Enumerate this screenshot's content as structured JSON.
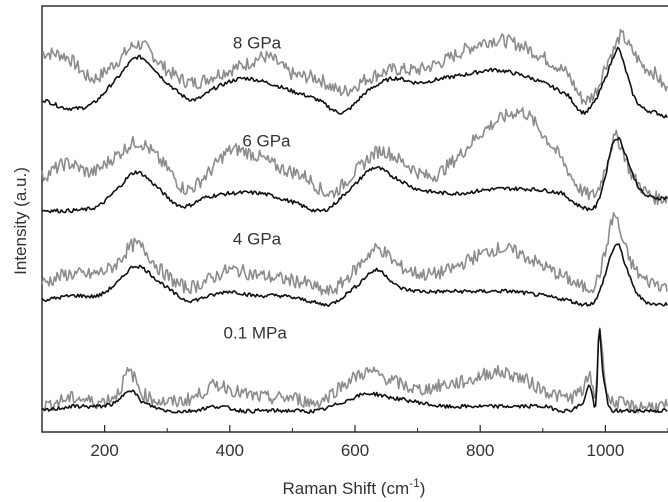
{
  "chart_data": {
    "type": "line",
    "title": "",
    "xlabel": "Raman Shift (cm",
    "xlabel_sup": "-1",
    "xlabel_end": ")",
    "ylabel": "Intensity (a.u.)",
    "xlim": [
      100,
      1100
    ],
    "ylim": [
      0,
      100
    ],
    "xticks": [
      "200",
      "400",
      "600",
      "800",
      "1000"
    ],
    "xtick_values": [
      200,
      400,
      600,
      800,
      1000
    ],
    "grid": false,
    "legend": "none",
    "colors": {
      "gray": "#8c8c8c",
      "black": "#111111"
    },
    "groups": [
      {
        "label": "8 GPa",
        "label_x": 405,
        "label_y": 90,
        "gray": {
          "x": [
            100,
            140,
            180,
            220,
            255,
            300,
            340,
            380,
            420,
            460,
            500,
            540,
            580,
            620,
            660,
            700,
            740,
            780,
            820,
            860,
            900,
            940,
            965,
            985,
            1000,
            1015,
            1025,
            1040,
            1060,
            1080,
            1100
          ],
          "y": [
            89,
            88,
            83,
            87,
            91,
            85,
            82,
            84,
            86,
            88,
            84,
            83,
            80,
            83,
            85,
            85,
            87,
            90,
            92,
            91,
            88,
            84,
            78,
            80,
            86,
            90,
            93,
            90,
            86,
            84,
            80
          ]
        },
        "black": {
          "x": [
            100,
            140,
            180,
            220,
            255,
            300,
            340,
            380,
            420,
            460,
            500,
            540,
            580,
            620,
            660,
            700,
            740,
            780,
            820,
            860,
            900,
            940,
            965,
            985,
            1000,
            1010,
            1020,
            1030,
            1045,
            1060,
            1080,
            1100
          ],
          "y": [
            78,
            76,
            77,
            83,
            88,
            82,
            78,
            81,
            83,
            82,
            80,
            78,
            75,
            80,
            83,
            82,
            83,
            84,
            85,
            84,
            82,
            79,
            75,
            78,
            83,
            87,
            90,
            86,
            79,
            76,
            75,
            74
          ]
        }
      },
      {
        "label": "6 GPa",
        "label_x": 420,
        "label_y": 67,
        "gray": {
          "x": [
            100,
            140,
            180,
            220,
            255,
            300,
            330,
            360,
            400,
            440,
            480,
            520,
            560,
            600,
            640,
            680,
            720,
            760,
            800,
            840,
            870,
            900,
            930,
            960,
            985,
            1000,
            1015,
            1025,
            1040,
            1060,
            1080,
            1100
          ],
          "y": [
            60,
            63,
            61,
            65,
            68,
            62,
            57,
            60,
            66,
            65,
            62,
            60,
            56,
            61,
            66,
            63,
            60,
            64,
            70,
            74,
            75,
            70,
            64,
            57,
            56,
            62,
            69,
            67,
            61,
            57,
            55,
            55
          ]
        },
        "black": {
          "x": [
            100,
            150,
            190,
            220,
            250,
            280,
            310,
            330,
            360,
            400,
            450,
            500,
            550,
            600,
            630,
            660,
            700,
            760,
            820,
            880,
            930,
            960,
            985,
            1000,
            1010,
            1020,
            1030,
            1045,
            1060,
            1080,
            1100
          ],
          "y": [
            52,
            52,
            53,
            57,
            61,
            58,
            54,
            53,
            55,
            56,
            56,
            54,
            52,
            58,
            62,
            60,
            57,
            56,
            57,
            57,
            56,
            53,
            53,
            60,
            67,
            69,
            66,
            60,
            56,
            55,
            55
          ]
        }
      },
      {
        "label": "4 GPa",
        "label_x": 405,
        "label_y": 44,
        "gray": {
          "x": [
            100,
            140,
            180,
            215,
            250,
            290,
            330,
            370,
            400,
            440,
            480,
            520,
            560,
            600,
            635,
            670,
            710,
            750,
            790,
            830,
            860,
            900,
            940,
            965,
            985,
            1000,
            1008,
            1015,
            1025,
            1040,
            1060,
            1080,
            1100
          ],
          "y": [
            35,
            37,
            37,
            39,
            44,
            38,
            34,
            36,
            38,
            37,
            36,
            35,
            33,
            38,
            43,
            39,
            37,
            38,
            41,
            43,
            42,
            39,
            36,
            34,
            35,
            42,
            48,
            51,
            46,
            40,
            36,
            35,
            34
          ]
        },
        "black": {
          "x": [
            100,
            150,
            190,
            220,
            250,
            290,
            330,
            370,
            400,
            440,
            480,
            520,
            560,
            600,
            635,
            670,
            710,
            750,
            800,
            850,
            900,
            940,
            965,
            985,
            1000,
            1010,
            1020,
            1030,
            1045,
            1060,
            1080,
            1100
          ],
          "y": [
            31,
            32,
            32,
            35,
            39,
            35,
            31,
            32,
            33,
            32,
            32,
            31,
            30,
            34,
            38,
            34,
            33,
            33,
            33,
            33,
            32,
            31,
            30,
            31,
            37,
            42,
            44,
            40,
            34,
            31,
            30,
            30
          ]
        }
      },
      {
        "label": "0.1 MPa",
        "label_x": 390,
        "label_y": 22,
        "gray": {
          "x": [
            100,
            150,
            190,
            220,
            240,
            260,
            300,
            340,
            380,
            420,
            460,
            500,
            540,
            580,
            620,
            660,
            700,
            740,
            780,
            820,
            860,
            900,
            940,
            965,
            975,
            985,
            990,
            995,
            1005,
            1020,
            1040,
            1060,
            1080,
            1100
          ],
          "y": [
            6,
            8,
            7,
            9,
            14,
            9,
            7,
            8,
            11,
            9,
            8,
            8,
            7,
            11,
            14,
            12,
            10,
            11,
            12,
            14,
            13,
            10,
            8,
            10,
            13,
            9,
            25,
            18,
            8,
            7,
            6,
            6,
            6,
            6
          ]
        },
        "black": {
          "x": [
            100,
            150,
            190,
            220,
            240,
            260,
            300,
            340,
            380,
            420,
            460,
            500,
            540,
            580,
            620,
            660,
            700,
            740,
            780,
            820,
            860,
            900,
            940,
            965,
            975,
            985,
            990,
            995,
            1005,
            1020,
            1040,
            1060,
            1080,
            1100
          ],
          "y": [
            5,
            6,
            6,
            7,
            10,
            7,
            5,
            5,
            6,
            5,
            5,
            5,
            5,
            7,
            9,
            8,
            7,
            6,
            6,
            6,
            6,
            6,
            5,
            7,
            11,
            6,
            24,
            15,
            6,
            5,
            5,
            5,
            5,
            5
          ]
        }
      }
    ]
  }
}
